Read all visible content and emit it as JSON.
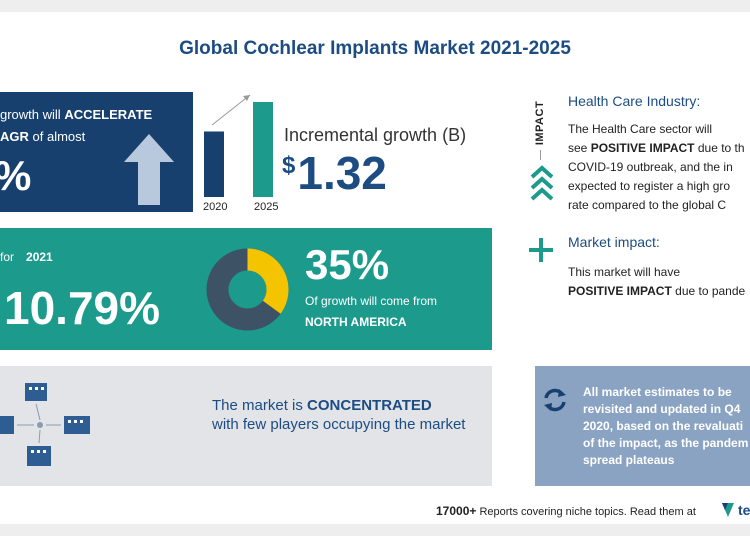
{
  "title": "Global Cochlear Implants Market 2021-2025",
  "cagr_panel": {
    "line1_pre": "growth will",
    "line1_bold": "ACCELERATE",
    "line2_bold": "AGR",
    "line2_rest": "of almost",
    "value": "%"
  },
  "growth_chart": {
    "categories": [
      "2020",
      "2025"
    ],
    "values": [
      1,
      1.45
    ],
    "bar_color": "#17406f",
    "bar_color_2": "#1c9b8c"
  },
  "incremental": {
    "label": "Incremental growth (B)",
    "currency": "$",
    "value": "1.32"
  },
  "yoy_panel": {
    "for_text": "for",
    "year": "2021",
    "value": "10.79%"
  },
  "region": {
    "share": 35,
    "pct_text": "35%",
    "desc": "Of growth will come from",
    "name": "NORTH AMERICA",
    "accent": "#f5c400",
    "ring_color": "#3e5266"
  },
  "concentration": {
    "pre": "The market is",
    "bold": "CONCENTRATED",
    "rest": "with few players occupying the market"
  },
  "impact": {
    "vertical_label": "IMPACT",
    "health": {
      "title": "Health Care Industry:",
      "l1": "The Health Care sector will",
      "l2_pre": "see",
      "l2_bold": "POSITIVE IMPACT",
      "l2_rest": "due to th",
      "l3": "COVID-19 outbreak, and the in",
      "l4": "expected to register a high gro",
      "l5": "rate compared to the global C"
    },
    "market": {
      "title": "Market impact:",
      "l1": "This market will have",
      "l2_bold": "POSITIVE IMPACT",
      "l2_rest": "due to pande"
    }
  },
  "note": {
    "l1": "All market estimates to be",
    "l2": "revisited and updated in Q4",
    "l3": "2020, based on the revaluati",
    "l4": "of the impact, as the pandem",
    "l5": "spread plateaus"
  },
  "footer": {
    "count": "17000+",
    "text": "Reports covering niche topics. Read them at",
    "logo_text": "te"
  }
}
